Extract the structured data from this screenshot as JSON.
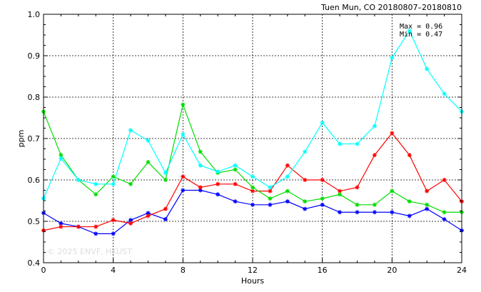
{
  "chart_data": {
    "type": "line",
    "title": "Tuen Mun, CO 20180807–20180810",
    "xlabel": "Hours",
    "ylabel": "ppm",
    "xlim": [
      0,
      24
    ],
    "ylim": [
      0.4,
      1.0
    ],
    "xticks": [
      "0",
      "4",
      "8",
      "12",
      "16",
      "20",
      "24"
    ],
    "yticks": [
      "0.4",
      "0.5",
      "0.6",
      "0.7",
      "0.8",
      "0.9",
      "1.0"
    ],
    "grid": true,
    "annotations": [
      "Max = 0.96",
      "Min = 0.47"
    ],
    "watermark": "© 2025 ENVF, HKUST",
    "x": [
      0,
      1,
      2,
      3,
      4,
      5,
      6,
      7,
      8,
      9,
      10,
      11,
      12,
      13,
      14,
      15,
      16,
      17,
      18,
      19,
      20,
      21,
      22,
      23,
      24
    ],
    "series": [
      {
        "color": "#0000ff",
        "values": [
          0.52,
          0.495,
          0.487,
          0.47,
          0.47,
          0.503,
          0.52,
          0.505,
          0.575,
          0.575,
          0.565,
          0.548,
          0.54,
          0.54,
          0.548,
          0.53,
          0.54,
          0.522,
          0.522,
          0.522,
          0.522,
          0.513,
          0.53,
          0.505,
          0.478
        ]
      },
      {
        "color": "#ff0000",
        "values": [
          0.478,
          0.487,
          0.487,
          0.487,
          0.503,
          0.495,
          0.513,
          0.53,
          0.608,
          0.582,
          0.59,
          0.59,
          0.573,
          0.573,
          0.635,
          0.6,
          0.6,
          0.573,
          0.582,
          0.66,
          0.713,
          0.66,
          0.573,
          0.6,
          0.548
        ]
      },
      {
        "color": "#00dd00",
        "values": [
          0.765,
          0.66,
          0.6,
          0.565,
          0.608,
          0.59,
          0.643,
          0.6,
          0.782,
          0.668,
          0.617,
          0.625,
          0.582,
          0.555,
          0.573,
          0.548,
          0.555,
          0.565,
          0.54,
          0.54,
          0.573,
          0.548,
          0.54,
          0.522,
          0.522
        ]
      },
      {
        "color": "#00ffff",
        "values": [
          0.555,
          0.652,
          0.6,
          0.59,
          0.59,
          0.72,
          0.695,
          0.617,
          0.71,
          0.635,
          0.62,
          0.635,
          0.608,
          0.582,
          0.608,
          0.668,
          0.738,
          0.687,
          0.687,
          0.73,
          0.895,
          0.96,
          0.868,
          0.808,
          0.765
        ]
      }
    ]
  }
}
